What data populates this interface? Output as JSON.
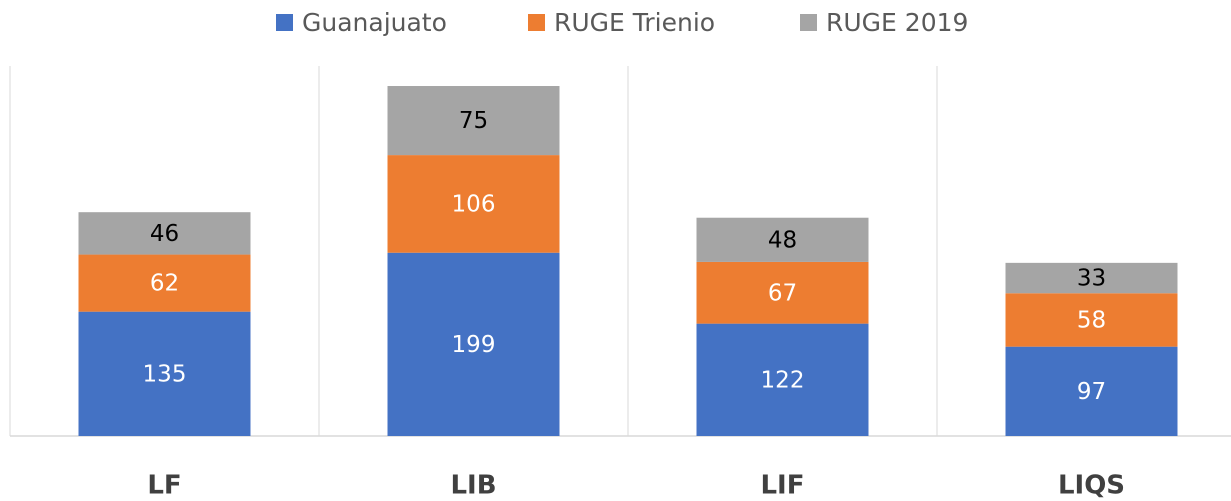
{
  "chart_data": {
    "type": "stacked_bar",
    "categories": [
      "LF",
      "LIB",
      "LIF",
      "LIQS"
    ],
    "series": [
      {
        "name": "Guanajuato",
        "color": "#4472c4",
        "values": [
          135,
          199,
          122,
          97
        ]
      },
      {
        "name": "RUGE Trienio",
        "color": "#ed7d31",
        "values": [
          62,
          106,
          67,
          58
        ]
      },
      {
        "name": "RUGE 2019",
        "color": "#a5a5a5",
        "values": [
          46,
          75,
          48,
          33
        ]
      }
    ],
    "legend": "top"
  }
}
